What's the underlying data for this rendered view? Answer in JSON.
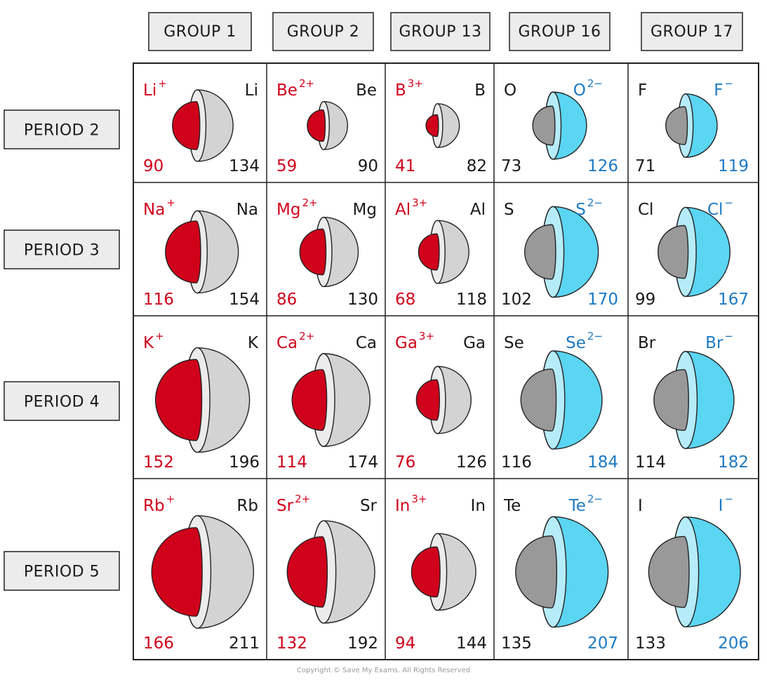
{
  "colors": {
    "cation": "#d0021b",
    "anion_text": "#1d7ac4",
    "atom_shell": "#d3d3d3",
    "atom_face": "#ececec",
    "core_gray": "#999999",
    "anion_shell": "#5ad5f2",
    "anion_face": "#b6ecf9",
    "header_bg": "#ececec",
    "outline": "#222222"
  },
  "group_headers": [
    "GROUP 1",
    "GROUP 2",
    "GROUP 13",
    "GROUP 16",
    "GROUP 17"
  ],
  "period_headers": [
    "PERIOD 2",
    "PERIOD 3",
    "PERIOD 4",
    "PERIOD 5"
  ],
  "rows": [
    [
      {
        "type": "cation",
        "ion": "Li",
        "charge": "+",
        "atom": "Li",
        "ion_radius": "90",
        "atom_radius": "134"
      },
      {
        "type": "cation",
        "ion": "Be",
        "charge": "2+",
        "atom": "Be",
        "ion_radius": "59",
        "atom_radius": "90"
      },
      {
        "type": "cation",
        "ion": "B",
        "charge": "3+",
        "atom": "B",
        "ion_radius": "41",
        "atom_radius": "82"
      },
      {
        "type": "anion",
        "ion": "O",
        "charge": "2−",
        "atom": "O",
        "ion_radius": "126",
        "atom_radius": "73"
      },
      {
        "type": "anion",
        "ion": "F",
        "charge": "−",
        "atom": "F",
        "ion_radius": "119",
        "atom_radius": "71"
      }
    ],
    [
      {
        "type": "cation",
        "ion": "Na",
        "charge": "+",
        "atom": "Na",
        "ion_radius": "116",
        "atom_radius": "154"
      },
      {
        "type": "cation",
        "ion": "Mg",
        "charge": "2+",
        "atom": "Mg",
        "ion_radius": "86",
        "atom_radius": "130"
      },
      {
        "type": "cation",
        "ion": "Al",
        "charge": "3+",
        "atom": "Al",
        "ion_radius": "68",
        "atom_radius": "118"
      },
      {
        "type": "anion",
        "ion": "S",
        "charge": "2−",
        "atom": "S",
        "ion_radius": "170",
        "atom_radius": "102"
      },
      {
        "type": "anion",
        "ion": "Cl",
        "charge": "−",
        "atom": "Cl",
        "ion_radius": "167",
        "atom_radius": "99"
      }
    ],
    [
      {
        "type": "cation",
        "ion": "K",
        "charge": "+",
        "atom": "K",
        "ion_radius": "152",
        "atom_radius": "196"
      },
      {
        "type": "cation",
        "ion": "Ca",
        "charge": "2+",
        "atom": "Ca",
        "ion_radius": "114",
        "atom_radius": "174"
      },
      {
        "type": "cation",
        "ion": "Ga",
        "charge": "3+",
        "atom": "Ga",
        "ion_radius": "76",
        "atom_radius": "126"
      },
      {
        "type": "anion",
        "ion": "Se",
        "charge": "2−",
        "atom": "Se",
        "ion_radius": "184",
        "atom_radius": "116"
      },
      {
        "type": "anion",
        "ion": "Br",
        "charge": "−",
        "atom": "Br",
        "ion_radius": "182",
        "atom_radius": "114"
      }
    ],
    [
      {
        "type": "cation",
        "ion": "Rb",
        "charge": "+",
        "atom": "Rb",
        "ion_radius": "166",
        "atom_radius": "211"
      },
      {
        "type": "cation",
        "ion": "Sr",
        "charge": "2+",
        "atom": "Sr",
        "ion_radius": "132",
        "atom_radius": "192"
      },
      {
        "type": "cation",
        "ion": "In",
        "charge": "3+",
        "atom": "In",
        "ion_radius": "94",
        "atom_radius": "144"
      },
      {
        "type": "anion",
        "ion": "Te",
        "charge": "2−",
        "atom": "Te",
        "ion_radius": "207",
        "atom_radius": "135"
      },
      {
        "type": "anion",
        "ion": "I",
        "charge": "−",
        "atom": "I",
        "ion_radius": "206",
        "atom_radius": "133"
      }
    ]
  ],
  "copyright": "Copyright © Save My Exams. All Rights Reserved"
}
